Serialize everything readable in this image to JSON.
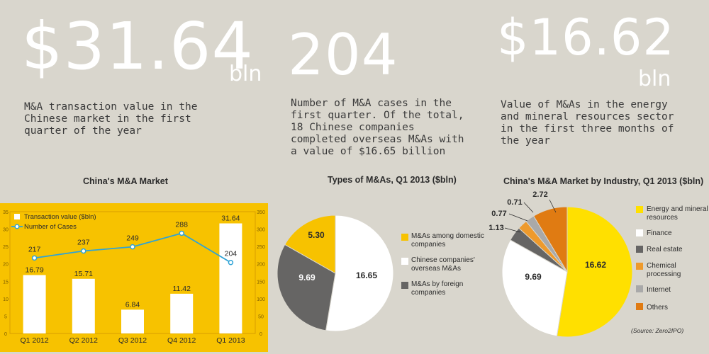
{
  "stats": [
    {
      "value": "$31.64",
      "unit": "bln",
      "description": "M&A transaction value in the Chinese market in the first quarter of the year"
    },
    {
      "value": "204",
      "unit": "",
      "description": "Number of M&A cases in the first quarter. Of the total, 18 Chinese companies completed overseas M&As with a value of $16.65 billion"
    },
    {
      "value": "$16.62",
      "unit": "bln",
      "description": "Value of M&As in the energy and mineral resources sector in the first three months of the year"
    }
  ],
  "colors": {
    "background": "#d9d6cd",
    "yellow": "#f7c200",
    "bright_yellow": "#ffe000",
    "dark_gray": "#666564",
    "white": "#ffffff",
    "orange": "#e07b12",
    "light_orange": "#ee9a2c",
    "light_gray": "#a9a9a9",
    "line_blue": "#2ea3d6"
  },
  "chart_data": [
    {
      "type": "bar",
      "title": "China's M&A Market",
      "categories": [
        "Q1 2012",
        "Q2 2012",
        "Q3 2012",
        "Q4 2012",
        "Q1 2013"
      ],
      "series": [
        {
          "name": "Transaction value ($bln)",
          "type": "bar",
          "axis": "left",
          "values": [
            16.79,
            15.71,
            6.84,
            11.42,
            31.64
          ]
        },
        {
          "name": "Number of Cases",
          "type": "line",
          "axis": "right",
          "values": [
            217,
            237,
            249,
            288,
            204
          ]
        }
      ],
      "ylim_left": [
        0,
        35
      ],
      "yticks_left": [
        "0",
        "5",
        "10",
        "15",
        "20",
        "25",
        "30",
        "35"
      ],
      "ylim_right": [
        0,
        350
      ],
      "yticks_right": [
        "0",
        "50",
        "100",
        "150",
        "200",
        "250",
        "300",
        "350"
      ],
      "grid": false,
      "legend": "top-left"
    },
    {
      "type": "pie",
      "title": "Types of M&As, Q1 2013 ($bln)",
      "slices": [
        {
          "label": "Chinese companies' overseas M&As",
          "value": 16.65,
          "color": "#ffffff"
        },
        {
          "label": "M&As by foreign companies",
          "value": 9.69,
          "color": "#666564"
        },
        {
          "label": "M&As among domestic companies",
          "value": 5.3,
          "color": "#f7c200"
        }
      ],
      "value_labels": [
        "16.65",
        "9.69",
        "5.30"
      ],
      "legend": "right",
      "legend_items": [
        {
          "label": "M&As among domestic companies",
          "color": "#f7c200"
        },
        {
          "label": "Chinese companies' overseas M&As",
          "color": "#ffffff"
        },
        {
          "label": "M&As by foreign companies",
          "color": "#666564"
        }
      ]
    },
    {
      "type": "pie",
      "title": "China's M&A Market by Industry, Q1 2013 ($bln)",
      "slices": [
        {
          "label": "Energy and mineral resources",
          "value": 16.62,
          "color": "#ffe000"
        },
        {
          "label": "Finance",
          "value": 9.69,
          "color": "#ffffff"
        },
        {
          "label": "Real estate",
          "value": 1.13,
          "color": "#666564"
        },
        {
          "label": "Chemical processing",
          "value": 0.77,
          "color": "#ee9a2c"
        },
        {
          "label": "Internet",
          "value": 0.71,
          "color": "#a9a9a9"
        },
        {
          "label": "Others",
          "value": 2.72,
          "color": "#e07b12"
        }
      ],
      "value_labels": [
        "16.62",
        "9.69",
        "1.13",
        "0.77",
        "0.71",
        "2.72"
      ],
      "legend": "right",
      "source": "(Source: Zero2IPO)"
    }
  ]
}
